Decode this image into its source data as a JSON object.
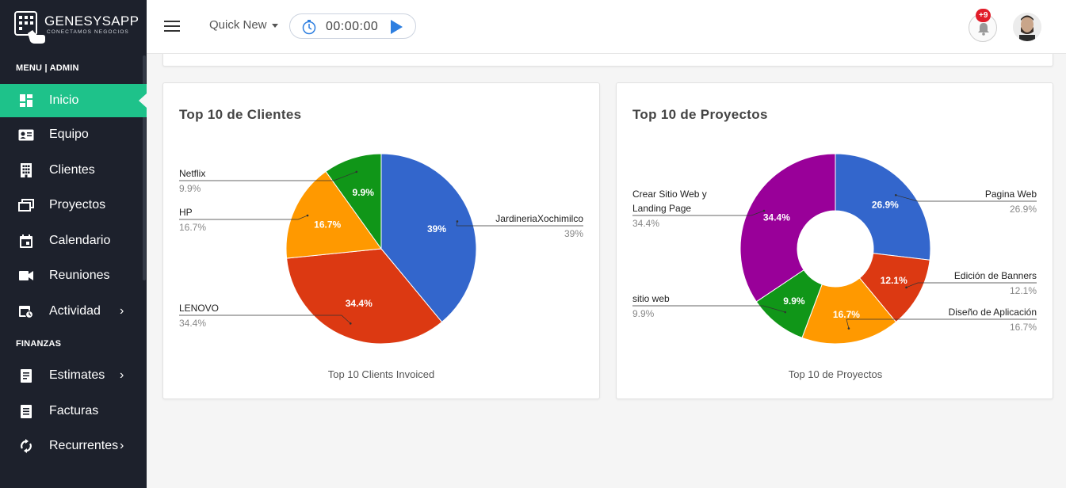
{
  "app": {
    "name": "GENESYSAPP",
    "tagline": "CONECTAMOS NEGOCIOS"
  },
  "sidebar": {
    "sections": [
      {
        "label": "MENU | ADMIN"
      },
      {
        "label": "FINANZAS"
      }
    ],
    "items": [
      {
        "label": "Inicio",
        "icon": "dashboard-icon",
        "active": true
      },
      {
        "label": "Equipo",
        "icon": "id-card-icon"
      },
      {
        "label": "Clientes",
        "icon": "building-icon"
      },
      {
        "label": "Proyectos",
        "icon": "folders-icon"
      },
      {
        "label": "Calendario",
        "icon": "calendar-icon"
      },
      {
        "label": "Reuniones",
        "icon": "video-icon"
      },
      {
        "label": "Actividad",
        "icon": "activity-icon",
        "chevron": "›"
      },
      {
        "label": "Estimates",
        "icon": "document-icon",
        "chevron": "›"
      },
      {
        "label": "Facturas",
        "icon": "invoice-icon"
      },
      {
        "label": "Recurrentes",
        "icon": "refresh-icon",
        "chevron": "›"
      }
    ]
  },
  "topbar": {
    "quick_new": "Quick New",
    "timer": "00:00:00",
    "notification_badge": "+9"
  },
  "colors": {
    "sidebar_bg": "#1d212c",
    "active_green": "#1ec28a",
    "blue": "#3366cc",
    "red": "#dc3912",
    "orange": "#ff9900",
    "green": "#109618",
    "purple": "#990099"
  },
  "chart_data": [
    {
      "type": "pie",
      "title": "Top 10 de Clientes",
      "caption": "Top 10 Clients Invoiced",
      "slices": [
        {
          "name": "JardineriaXochimilco",
          "value": 39,
          "label": "39%",
          "color": "#3366cc"
        },
        {
          "name": "LENOVO",
          "value": 34.4,
          "label": "34.4%",
          "color": "#dc3912"
        },
        {
          "name": "HP",
          "value": 16.7,
          "label": "16.7%",
          "color": "#ff9900"
        },
        {
          "name": "Netflix",
          "value": 9.9,
          "label": "9.9%",
          "color": "#109618"
        }
      ]
    },
    {
      "type": "pie",
      "donut": true,
      "title": "Top 10 de Proyectos",
      "caption": "Top 10 de Proyectos",
      "slices": [
        {
          "name": "Pagina Web",
          "value": 26.9,
          "label": "26.9%",
          "color": "#3366cc"
        },
        {
          "name": "Edición de Banners",
          "value": 12.1,
          "label": "12.1%",
          "color": "#dc3912"
        },
        {
          "name": "Diseño de Aplicación",
          "value": 16.7,
          "label": "16.7%",
          "color": "#ff9900"
        },
        {
          "name": "sitio web",
          "value": 9.9,
          "label": "9.9%",
          "color": "#109618"
        },
        {
          "name": "Crear Sitio Web y Landing Page",
          "value": 34.4,
          "label": "34.4%",
          "color": "#990099"
        }
      ]
    }
  ]
}
